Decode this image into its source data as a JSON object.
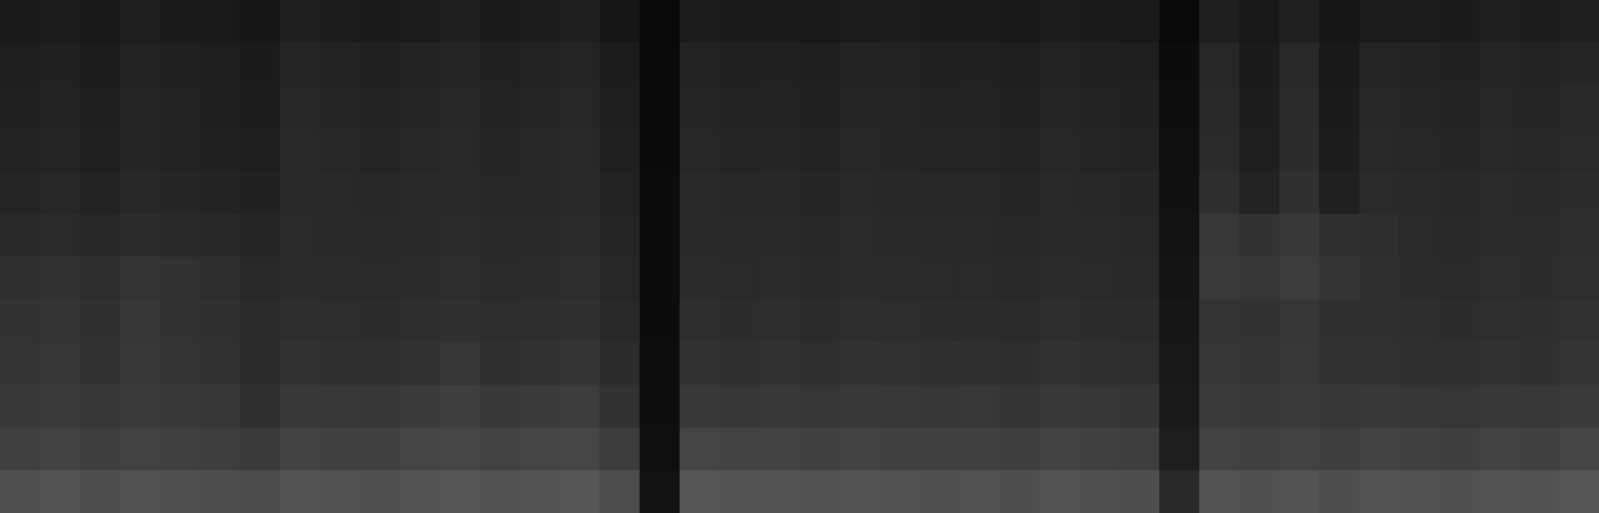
{
  "chart_data": {
    "type": "heatmap",
    "tick_labels": false,
    "xlim": [
      0,
      40
    ],
    "ylim": [
      0,
      12
    ],
    "cells": [
      [
        26,
        28,
        24,
        30,
        27,
        25,
        22,
        30,
        28,
        26,
        29,
        31,
        27,
        28,
        30,
        22,
        8,
        28,
        26,
        27,
        25,
        29,
        28,
        26,
        27,
        24,
        28,
        26,
        25,
        10,
        30,
        24,
        32,
        22,
        28,
        29,
        27,
        30,
        28,
        31
      ],
      [
        30,
        33,
        28,
        35,
        32,
        30,
        27,
        36,
        34,
        32,
        35,
        37,
        33,
        34,
        36,
        28,
        9,
        34,
        32,
        33,
        31,
        35,
        34,
        32,
        33,
        30,
        34,
        32,
        31,
        12,
        38,
        26,
        40,
        24,
        36,
        35,
        33,
        36,
        34,
        37
      ],
      [
        32,
        35,
        30,
        36,
        34,
        31,
        29,
        38,
        36,
        34,
        37,
        38,
        35,
        36,
        38,
        30,
        10,
        36,
        34,
        35,
        33,
        37,
        36,
        34,
        35,
        32,
        36,
        34,
        33,
        14,
        40,
        28,
        42,
        26,
        38,
        37,
        35,
        38,
        36,
        40
      ],
      [
        34,
        36,
        32,
        37,
        35,
        33,
        31,
        40,
        38,
        36,
        38,
        40,
        37,
        38,
        40,
        32,
        10,
        38,
        36,
        37,
        35,
        38,
        37,
        36,
        36,
        34,
        38,
        36,
        35,
        15,
        42,
        30,
        44,
        28,
        40,
        38,
        37,
        40,
        38,
        42
      ],
      [
        36,
        38,
        34,
        39,
        37,
        35,
        33,
        41,
        40,
        38,
        40,
        41,
        38,
        39,
        41,
        34,
        11,
        40,
        38,
        39,
        37,
        40,
        39,
        38,
        38,
        36,
        40,
        38,
        37,
        16,
        46,
        34,
        48,
        32,
        42,
        40,
        39,
        42,
        40,
        44
      ],
      [
        40,
        42,
        38,
        44,
        41,
        39,
        36,
        42,
        41,
        40,
        41,
        43,
        40,
        41,
        43,
        36,
        11,
        41,
        40,
        41,
        39,
        42,
        40,
        40,
        40,
        38,
        41,
        40,
        39,
        18,
        55,
        50,
        56,
        48,
        46,
        42,
        40,
        43,
        42,
        45
      ],
      [
        48,
        50,
        46,
        52,
        49,
        46,
        40,
        44,
        43,
        42,
        44,
        45,
        42,
        43,
        46,
        38,
        12,
        44,
        42,
        43,
        41,
        44,
        43,
        42,
        42,
        40,
        44,
        42,
        41,
        20,
        58,
        54,
        60,
        52,
        48,
        44,
        42,
        45,
        44,
        47
      ],
      [
        50,
        52,
        48,
        54,
        50,
        48,
        42,
        46,
        45,
        44,
        46,
        48,
        45,
        46,
        48,
        40,
        12,
        46,
        44,
        46,
        43,
        46,
        45,
        44,
        44,
        42,
        46,
        44,
        43,
        22,
        52,
        50,
        54,
        48,
        48,
        46,
        44,
        47,
        46,
        49
      ],
      [
        52,
        54,
        50,
        55,
        52,
        50,
        44,
        50,
        48,
        47,
        50,
        54,
        48,
        50,
        52,
        44,
        13,
        50,
        48,
        50,
        47,
        50,
        49,
        48,
        48,
        46,
        50,
        48,
        46,
        24,
        54,
        52,
        55,
        50,
        50,
        48,
        47,
        50,
        48,
        52
      ],
      [
        56,
        58,
        54,
        58,
        56,
        54,
        48,
        56,
        55,
        54,
        58,
        62,
        56,
        58,
        60,
        50,
        14,
        56,
        54,
        56,
        53,
        56,
        55,
        54,
        55,
        52,
        56,
        54,
        52,
        26,
        58,
        56,
        58,
        54,
        56,
        54,
        53,
        56,
        55,
        58
      ],
      [
        64,
        66,
        62,
        66,
        64,
        62,
        58,
        66,
        65,
        64,
        68,
        70,
        66,
        68,
        70,
        60,
        15,
        68,
        66,
        66,
        64,
        66,
        65,
        64,
        65,
        62,
        66,
        64,
        62,
        30,
        66,
        64,
        66,
        62,
        66,
        64,
        63,
        66,
        65,
        68
      ],
      [
        80,
        84,
        78,
        82,
        80,
        78,
        74,
        84,
        82,
        80,
        84,
        86,
        82,
        84,
        86,
        76,
        18,
        86,
        84,
        84,
        82,
        84,
        82,
        80,
        82,
        78,
        84,
        80,
        78,
        40,
        84,
        80,
        84,
        78,
        84,
        82,
        80,
        84,
        82,
        86
      ]
    ]
  }
}
